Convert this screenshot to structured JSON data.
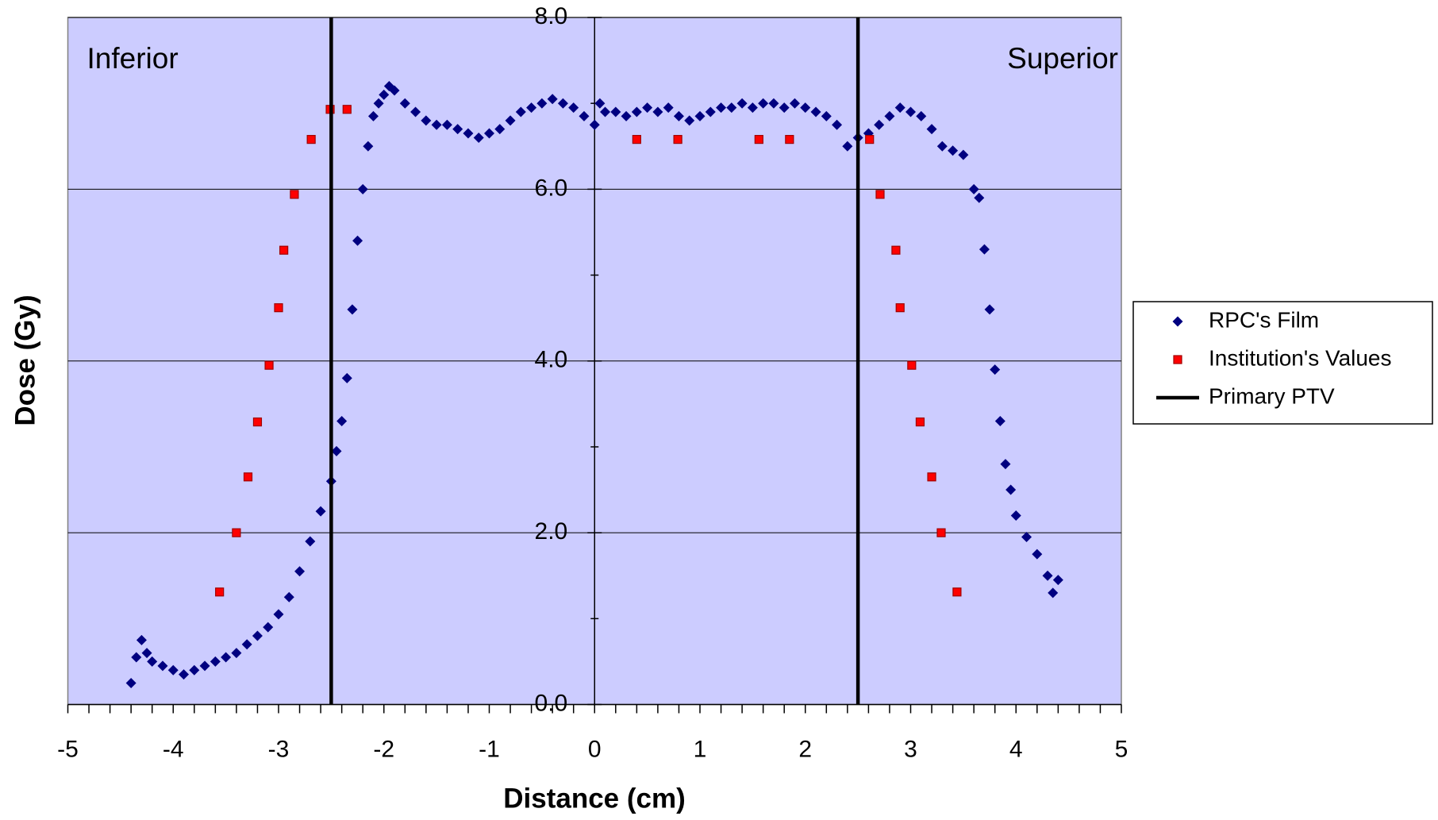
{
  "chart_data": {
    "type": "scatter",
    "xlabel": "Distance (cm)",
    "ylabel": "Dose (Gy)",
    "annotations": [
      "Inferior",
      "Superior"
    ],
    "xlim": [
      -5,
      5
    ],
    "ylim": [
      0,
      8
    ],
    "xticks": [
      -5,
      -4,
      -3,
      -2,
      -1,
      0,
      1,
      2,
      3,
      4,
      5
    ],
    "yticks": [
      {
        "value": 0,
        "label": "0.0"
      },
      {
        "value": 2,
        "label": "2.0"
      },
      {
        "value": 4,
        "label": "4.0"
      },
      {
        "value": 6,
        "label": "6.0"
      },
      {
        "value": 8,
        "label": "8.0"
      }
    ],
    "x_minor_ticks_per_major": 5,
    "y_minor_ticks_per_major": 2,
    "grid": true,
    "background": "#ccccff",
    "legend": "right",
    "series": [
      {
        "name": "RPC's Film",
        "color": "#000080",
        "marker": "diamond",
        "x": [
          -4.4,
          -4.35,
          -4.3,
          -4.25,
          -4.2,
          -4.1,
          -4.0,
          -3.9,
          -3.8,
          -3.7,
          -3.6,
          -3.5,
          -3.4,
          -3.3,
          -3.2,
          -3.1,
          -3.0,
          -2.9,
          -2.8,
          -2.7,
          -2.6,
          -2.5,
          -2.45,
          -2.4,
          -2.35,
          -2.3,
          -2.25,
          -2.2,
          -2.15,
          -2.1,
          -2.05,
          -2.0,
          -1.95,
          -1.9,
          -1.8,
          -1.7,
          -1.6,
          -1.5,
          -1.4,
          -1.3,
          -1.2,
          -1.1,
          -1.0,
          -0.9,
          -0.8,
          -0.7,
          -0.6,
          -0.5,
          -0.4,
          -0.3,
          -0.2,
          -0.1,
          0.0,
          0.05,
          0.1,
          0.2,
          0.3,
          0.4,
          0.5,
          0.6,
          0.7,
          0.8,
          0.9,
          1.0,
          1.1,
          1.2,
          1.3,
          1.4,
          1.5,
          1.6,
          1.7,
          1.8,
          1.9,
          2.0,
          2.1,
          2.2,
          2.3,
          2.4,
          2.5,
          2.6,
          2.7,
          2.8,
          2.9,
          3.0,
          3.1,
          3.2,
          3.3,
          3.4,
          3.5,
          3.6,
          3.65,
          3.7,
          3.75,
          3.8,
          3.85,
          3.9,
          3.95,
          4.0,
          4.1,
          4.2,
          4.3,
          4.35,
          4.4
        ],
        "values": [
          0.25,
          0.55,
          0.75,
          0.6,
          0.5,
          0.45,
          0.4,
          0.35,
          0.4,
          0.45,
          0.5,
          0.55,
          0.6,
          0.7,
          0.8,
          0.9,
          1.05,
          1.25,
          1.55,
          1.9,
          2.25,
          2.6,
          2.95,
          3.3,
          3.8,
          4.6,
          5.4,
          6.0,
          6.5,
          6.85,
          7.0,
          7.1,
          7.2,
          7.15,
          7.0,
          6.9,
          6.8,
          6.75,
          6.75,
          6.7,
          6.65,
          6.6,
          6.65,
          6.7,
          6.8,
          6.9,
          6.95,
          7.0,
          7.05,
          7.0,
          6.95,
          6.85,
          6.75,
          7.0,
          6.9,
          6.9,
          6.85,
          6.9,
          6.95,
          6.9,
          6.95,
          6.85,
          6.8,
          6.85,
          6.9,
          6.95,
          6.95,
          7.0,
          6.95,
          7.0,
          7.0,
          6.95,
          7.0,
          6.95,
          6.9,
          6.85,
          6.75,
          6.5,
          6.6,
          6.65,
          6.75,
          6.85,
          6.95,
          6.9,
          6.85,
          6.7,
          6.5,
          6.45,
          6.4,
          6.0,
          5.9,
          5.3,
          4.6,
          3.9,
          3.3,
          2.8,
          2.5,
          2.2,
          1.95,
          1.75,
          1.5,
          1.3,
          1.45
        ]
      },
      {
        "name": "Institution's Values",
        "color": "#ff0000",
        "marker": "square",
        "x": [
          -3.56,
          -3.4,
          -3.29,
          -3.2,
          -3.09,
          -3.0,
          -2.95,
          -2.85,
          -2.69,
          -2.51,
          -2.35,
          0.4,
          0.79,
          1.56,
          1.85,
          2.61,
          2.71,
          2.86,
          2.9,
          3.01,
          3.09,
          3.2,
          3.29,
          3.44
        ],
        "values": [
          1.31,
          2.0,
          2.65,
          3.29,
          3.95,
          4.62,
          5.29,
          5.94,
          6.58,
          6.93,
          6.93,
          6.58,
          6.58,
          6.58,
          6.58,
          6.58,
          5.94,
          5.29,
          4.62,
          3.95,
          3.29,
          2.65,
          2.0,
          1.31
        ]
      },
      {
        "name": "Primary PTV",
        "color": "#000000",
        "marker": "vline",
        "x": [
          -2.5,
          2.5
        ]
      }
    ]
  }
}
